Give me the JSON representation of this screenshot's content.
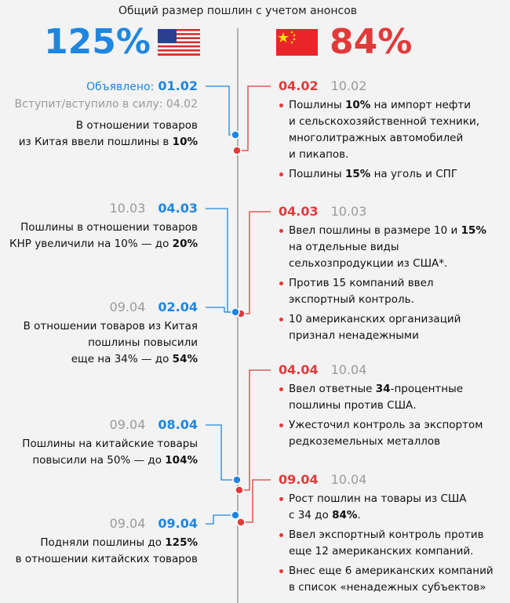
{
  "title": "Общий размер пошлин с учетом анонсов",
  "usa": {
    "total": "125%",
    "events": [
      {
        "announced_label": "Объявлено:",
        "announced": "01.02",
        "effective_label": "Вступит/вступило в силу:",
        "effective": "04.02",
        "lines": [
          [
            "В отношении товаров"
          ],
          [
            "из Китая ввели пошлины в ",
            "10%"
          ]
        ]
      },
      {
        "effective": "10.03",
        "announced": "04.03",
        "lines": [
          [
            "Пошлины в отношении товаров"
          ],
          [
            "КНР увеличили на 10% — до ",
            "20%"
          ]
        ]
      },
      {
        "effective": "09.04",
        "announced": "02.04",
        "lines": [
          [
            "В отношении товаров из Китая"
          ],
          [
            "пошлины повысили"
          ],
          [
            "еще на 34% — до ",
            "54%"
          ]
        ]
      },
      {
        "effective": "09.04",
        "announced": "08.04",
        "lines": [
          [
            "Пошлины на китайские товары"
          ],
          [
            "повысили на 50% — до ",
            "104%"
          ]
        ]
      },
      {
        "effective": "09.04",
        "announced": "09.04",
        "lines": [
          [
            "Подняли пошлины до ",
            "125%"
          ],
          [
            "в отношении китайских товаров"
          ]
        ]
      }
    ]
  },
  "china": {
    "total": "84%",
    "events": [
      {
        "announced": "04.02",
        "effective": "10.02",
        "bullets": [
          [
            [
              "Пошлины ",
              "10%",
              " на импорт нефти"
            ],
            [
              "и сельскохозяйственной техники,"
            ],
            [
              "многолитражных автомобилей"
            ],
            [
              "и пикапов."
            ]
          ],
          [
            [
              "Пошлины ",
              "15%",
              " на уголь и СПГ"
            ]
          ]
        ]
      },
      {
        "announced": "04.03",
        "effective": "10.03",
        "bullets": [
          [
            [
              "Ввел пошлины в размере 10 и ",
              "15%"
            ],
            [
              "на отдельные виды"
            ],
            [
              "сельхозпродукции из США*."
            ]
          ],
          [
            [
              "Против 15 компаний ввел"
            ],
            [
              "экспортный контроль."
            ]
          ],
          [
            [
              "10 американских организаций"
            ],
            [
              "признал ненадежными"
            ]
          ]
        ]
      },
      {
        "announced": "04.04",
        "effective": "10.04",
        "bullets": [
          [
            [
              "Ввел ответные ",
              "34",
              "-процентные"
            ],
            [
              "пошлины против США."
            ]
          ],
          [
            [
              "Ужесточил контроль за экспортом"
            ],
            [
              "редкоземельных металлов"
            ]
          ]
        ]
      },
      {
        "announced": "09.04",
        "effective": "10.04",
        "bullets": [
          [
            [
              "Рост пошлин на товары из США"
            ],
            [
              "с 34 до ",
              "84%",
              "."
            ]
          ],
          [
            [
              "Ввел экспортный контроль против"
            ],
            [
              "еще 12 американских компаний."
            ]
          ],
          [
            [
              "Внес еще 6 американских компаний"
            ],
            [
              "в список «ненадежных субъектов»"
            ]
          ]
        ]
      }
    ]
  }
}
